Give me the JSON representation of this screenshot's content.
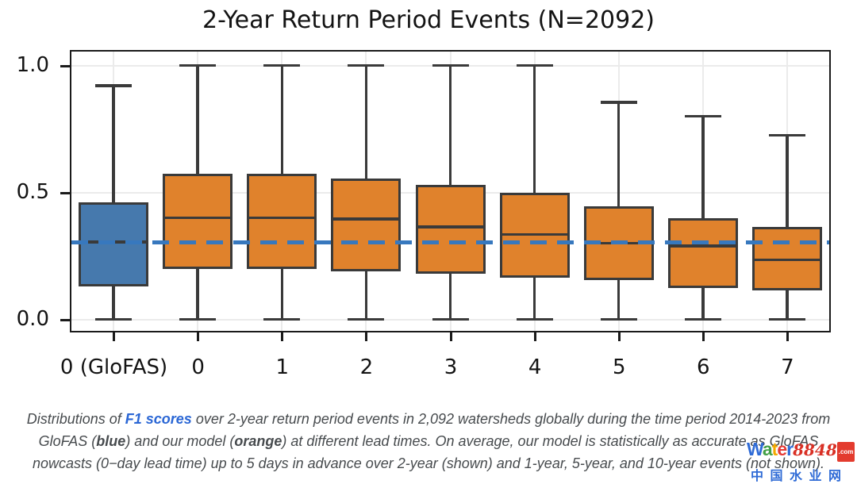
{
  "chart_data": {
    "type": "boxplot",
    "title": "2-Year Return Period Events (N=2092)",
    "categories": [
      "0 (GloFAS)",
      "0",
      "1",
      "2",
      "3",
      "4",
      "5",
      "6",
      "7"
    ],
    "xlabel": "",
    "ylabel": "",
    "ylim": [
      -0.045,
      1.055
    ],
    "yticks": [
      0,
      0.5,
      1
    ],
    "ytick_labels": [
      "0.0",
      "0.5",
      "1.0"
    ],
    "grid": true,
    "reference_line": {
      "value": 0.305,
      "style": "dashed",
      "color": "#3778BE"
    },
    "series": [
      {
        "category": "0 (GloFAS)",
        "group": "GloFAS",
        "color": "#4679AD",
        "whisker_low": 0.0,
        "q1": 0.13,
        "median": 0.305,
        "q3": 0.46,
        "whisker_high": 0.92
      },
      {
        "category": "0",
        "group": "our model",
        "color": "#E0822C",
        "whisker_low": 0.0,
        "q1": 0.2,
        "median": 0.4,
        "q3": 0.575,
        "whisker_high": 1.0
      },
      {
        "category": "1",
        "group": "our model",
        "color": "#E0822C",
        "whisker_low": 0.0,
        "q1": 0.2,
        "median": 0.4,
        "q3": 0.575,
        "whisker_high": 1.0
      },
      {
        "category": "2",
        "group": "our model",
        "color": "#E0822C",
        "whisker_low": 0.0,
        "q1": 0.19,
        "median": 0.395,
        "q3": 0.555,
        "whisker_high": 1.0
      },
      {
        "category": "3",
        "group": "our model",
        "color": "#E0822C",
        "whisker_low": 0.0,
        "q1": 0.18,
        "median": 0.365,
        "q3": 0.53,
        "whisker_high": 1.0
      },
      {
        "category": "4",
        "group": "our model",
        "color": "#E0822C",
        "whisker_low": 0.0,
        "q1": 0.165,
        "median": 0.335,
        "q3": 0.5,
        "whisker_high": 1.0
      },
      {
        "category": "5",
        "group": "our model",
        "color": "#E0822C",
        "whisker_low": 0.0,
        "q1": 0.155,
        "median": 0.3,
        "q3": 0.445,
        "whisker_high": 0.855
      },
      {
        "category": "6",
        "group": "our model",
        "color": "#E0822C",
        "whisker_low": 0.0,
        "q1": 0.125,
        "median": 0.29,
        "q3": 0.4,
        "whisker_high": 0.8
      },
      {
        "category": "7",
        "group": "our model",
        "color": "#E0822C",
        "whisker_low": 0.0,
        "q1": 0.115,
        "median": 0.235,
        "q3": 0.365,
        "whisker_high": 0.725
      }
    ]
  },
  "caption": {
    "lines": [
      [
        {
          "t": "Distributions of ",
          "s": "normal"
        },
        {
          "t": "F1 scores",
          "s": "link"
        },
        {
          "t": " over 2-year return period events in 2,092 watersheds globally during the time period 2014-2023 from",
          "s": "normal"
        }
      ],
      [
        {
          "t": "GloFAS (",
          "s": "normal"
        },
        {
          "t": "blue",
          "s": "bold"
        },
        {
          "t": ") and our model (",
          "s": "normal"
        },
        {
          "t": "orange",
          "s": "bold"
        },
        {
          "t": ") at different lead times. On average, our model is statistically as accurate as GloFAS",
          "s": "normal"
        }
      ],
      [
        {
          "t": "nowcasts (0−day lead time) up to 5 days in advance over 2-year (shown) and 1-year, 5-year, and 10-year events (not shown).",
          "s": "normal"
        }
      ]
    ]
  },
  "watermark": {
    "brand_letters": [
      {
        "ch": "W",
        "color": "#2F6BD6"
      },
      {
        "ch": "a",
        "color": "#43A047"
      },
      {
        "ch": "t",
        "color": "#F4A900"
      },
      {
        "ch": "e",
        "color": "#E53935"
      },
      {
        "ch": "r",
        "color": "#2F6BD6"
      }
    ],
    "brand_number": "8848",
    "brand_suffix": ".com",
    "cn_text": "中国水业网"
  },
  "colors": {
    "glofas_blue": "#4679AD",
    "model_orange": "#E0822C",
    "box_edge": "#3A3A3A",
    "reference_blue": "#3778BE",
    "grid": "#EBEBEB",
    "frame": "#1A1A1A",
    "caption_text": "#474B4E",
    "caption_link": "#2B67D5",
    "watermark_red": "#D93025",
    "watermark_blue": "#2F6BD6"
  }
}
